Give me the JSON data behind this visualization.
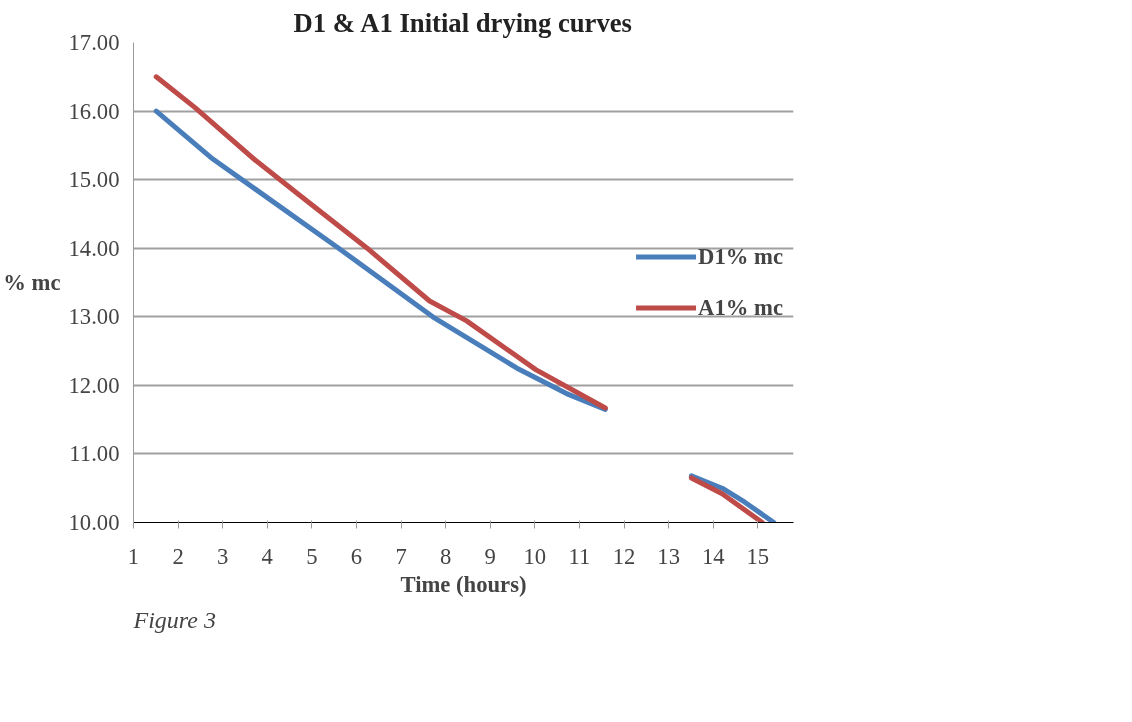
{
  "chart_data": {
    "type": "line",
    "title": "D1 & A1 Initial drying curves",
    "xlabel": "Time (hours)",
    "ylabel": "% mc",
    "annotations": [
      "Figure 3"
    ],
    "series": [
      {
        "name": "D1% mc",
        "color": "#4a7ebb",
        "x": [
          1.51,
          2.74,
          3.78,
          5.6,
          7.71,
          9.6,
          10.71,
          11.58,
          12.5,
          13.51,
          14.2,
          14.7,
          15.36
        ],
        "values": [
          16.0,
          15.32,
          14.84,
          14.0,
          13.0,
          12.25,
          11.88,
          11.65,
          null,
          10.68,
          10.5,
          10.3,
          10.0
        ]
      },
      {
        "name": "A1% mc",
        "color": "#be4b48",
        "x": [
          1.51,
          2.38,
          3.72,
          4.69,
          6.24,
          7.64,
          8.47,
          10.02,
          11.58,
          12.5,
          13.51,
          14.2,
          15.1
        ],
        "values": [
          16.5,
          16.05,
          15.29,
          14.79,
          14.0,
          13.23,
          12.94,
          12.23,
          11.67,
          null,
          10.65,
          10.42,
          10.0
        ]
      }
    ],
    "xlim": [
      1,
      15.8
    ],
    "xticks": [
      1,
      2,
      3,
      4,
      5,
      6,
      7,
      8,
      9,
      10,
      11,
      12,
      13,
      14,
      15
    ],
    "ylim": [
      10,
      17
    ],
    "yticks": [
      {
        "value": 10,
        "label": "10.00"
      },
      {
        "value": 11,
        "label": "11.00"
      },
      {
        "value": 12,
        "label": "12.00"
      },
      {
        "value": 13,
        "label": "13.00"
      },
      {
        "value": 14,
        "label": "14.00"
      },
      {
        "value": 15,
        "label": "15.00"
      },
      {
        "value": 16,
        "label": "16.00"
      },
      {
        "value": 17,
        "label": "17.00"
      }
    ],
    "grid": "y",
    "legend": "right",
    "marker": "none",
    "line_style": "solid"
  }
}
